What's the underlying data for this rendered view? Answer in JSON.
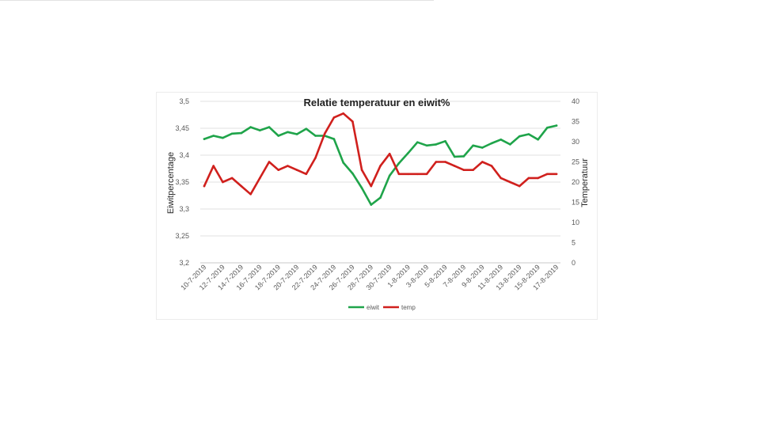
{
  "chart_data": {
    "type": "line",
    "title": "Relatie temperatuur en eiwit%",
    "ylabel_left": "Eiwitpercentage",
    "ylabel_right": "Temperatuur",
    "left_ticks": [
      "3,2",
      "3,25",
      "3,3",
      "3,35",
      "3,4",
      "3,45",
      "3,5"
    ],
    "right_ticks": [
      "0",
      "5",
      "10",
      "15",
      "20",
      "25",
      "30",
      "35",
      "40"
    ],
    "ylim_left": [
      3.2,
      3.5
    ],
    "ylim_right": [
      0,
      40
    ],
    "grid": true,
    "legend_position": "bottom",
    "x_tick_labels": [
      "10-7-2019",
      "12-7-2019",
      "14-7-2019",
      "16-7-2019",
      "18-7-2019",
      "20-7-2019",
      "22-7-2019",
      "24-7-2019",
      "26-7-2019",
      "28-7-2019",
      "30-7-2019",
      "1-8-2019",
      "3-8-2019",
      "5-8-2019",
      "7-8-2019",
      "9-8-2019",
      "11-8-2019",
      "13-8-2019",
      "15-8-2019",
      "17-8-2019"
    ],
    "x": [
      "10-7-2019",
      "11-7-2019",
      "12-7-2019",
      "13-7-2019",
      "14-7-2019",
      "15-7-2019",
      "16-7-2019",
      "17-7-2019",
      "18-7-2019",
      "19-7-2019",
      "20-7-2019",
      "21-7-2019",
      "22-7-2019",
      "23-7-2019",
      "24-7-2019",
      "25-7-2019",
      "26-7-2019",
      "27-7-2019",
      "28-7-2019",
      "29-7-2019",
      "30-7-2019",
      "31-7-2019",
      "1-8-2019",
      "2-8-2019",
      "3-8-2019",
      "4-8-2019",
      "5-8-2019",
      "6-8-2019",
      "7-8-2019",
      "8-8-2019",
      "9-8-2019",
      "10-8-2019",
      "11-8-2019",
      "12-8-2019",
      "13-8-2019",
      "14-8-2019",
      "15-8-2019",
      "16-8-2019",
      "17-8-2019"
    ],
    "series": [
      {
        "name": "eiwit",
        "axis": "left",
        "color": "#1fa44a",
        "values": [
          3.43,
          3.436,
          3.432,
          3.44,
          3.441,
          3.452,
          3.446,
          3.452,
          3.436,
          3.443,
          3.439,
          3.449,
          3.436,
          3.436,
          3.43,
          3.386,
          3.366,
          3.339,
          3.308,
          3.321,
          3.362,
          3.385,
          3.404,
          3.424,
          3.418,
          3.42,
          3.426,
          3.397,
          3.398,
          3.418,
          3.414,
          3.422,
          3.429,
          3.42,
          3.435,
          3.439,
          3.429,
          3.451,
          3.455
        ]
      },
      {
        "name": "temp",
        "axis": "right",
        "color": "#d0201d",
        "values": [
          19,
          24,
          20,
          21,
          19,
          17,
          21,
          25,
          23,
          24,
          23,
          22,
          26,
          32,
          36,
          37,
          35,
          23,
          19,
          24,
          27,
          22,
          22,
          22,
          22,
          25,
          25,
          24,
          23,
          23,
          25,
          24,
          21,
          20,
          19,
          21,
          21,
          22,
          22
        ]
      }
    ]
  }
}
